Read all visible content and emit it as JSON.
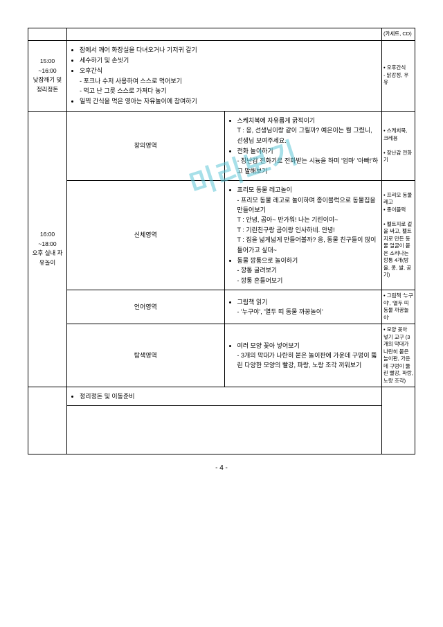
{
  "row0_mat": "(카세트, CD)",
  "row1_time": "15:00\n~16:00\n낮잠깨기 및 정리정돈",
  "row1_items": [
    "잠에서 깨어 화장실을 다녀오거나 기저귀 갈기",
    "세수하기 및 손씻기",
    "오후간식",
    "- 포크나 수저 사용하여 스스로 먹어보기",
    "- 먹고 난 그릇 스스로 가져다 놓기",
    "일찍 간식을 먹은 영아는 자유놀이에 참여하기"
  ],
  "row1_mat": "• 오후간식\n- 닭강정, 우유",
  "row2_time": "16:00\n~18:00\n오후 실내 자유놀이",
  "area1": "창의영역",
  "area1_items": [
    "스케치북에 자유롭게 긁적이기",
    "T : 응, 선생님이랑 같이 그릴까? 예은이는 뭘 그렸니, 선생님 보여주세요.",
    "전화 놀이하기",
    "- 장난감 전화기로 전화받는 시늉을 하며 '엄마' '아빠!'하고 말해보기"
  ],
  "area1_mat": "• 스케치북, 크레용\n\n• 장난감 전화기",
  "area2": "신체영역",
  "area2_items": [
    "프리모 동물 레고놀이",
    "- 프리모 동물 레고로 놀이하며 종이블럭으로 동물집을 만들어보기",
    "T : 안녕, 곰아~ 반가워! 나는 기린이야~",
    "T : 기린친구랑 곰이랑 인사하네. 안녕!",
    "T : 집을 넓게넓게 만들어볼까? 응, 동물 친구들이 많이 들어가고 싶대~",
    "동물 깡통으로 놀이하기",
    "- 깡통 굴려보기",
    "- 깡통 흔들어보기"
  ],
  "area2_mat": "• 프리모 동물 레고\n• 종이블럭\n\n• 펠트지로 겉을 싸고, 펠트지로 만든 동물 얼굴이 붙은 소리나는 깡통 4개(방울, 콩, 쌀, 공기)",
  "area3": "언어영역",
  "area3_items": [
    "그림책 읽기",
    "- '누구야', '열두 띠 동물 까꿍놀이'"
  ],
  "area3_mat": "• 그림책 '누구야', '열두 띠 동물 까꿍놀이'",
  "area4": "탐색영역",
  "area4_items": [
    "여러 모양 꽂아 넣어보기",
    "- 3개의 막대가 나란히 붙은 놀이판에 가운데 구멍이 뚫린 다양한 모양의 빨강, 파랑, 노랑 조각 끼워보기"
  ],
  "area4_mat": "• 모양 꽂아 넣기 교구 (3개의 막대가 나란히 붙은 놀이판, 가운데 구멍이 뚫린 빨강, 파랑, 노랑 조각)",
  "row3_item": "정리정돈 및 이동준비",
  "page": "- 4 -"
}
